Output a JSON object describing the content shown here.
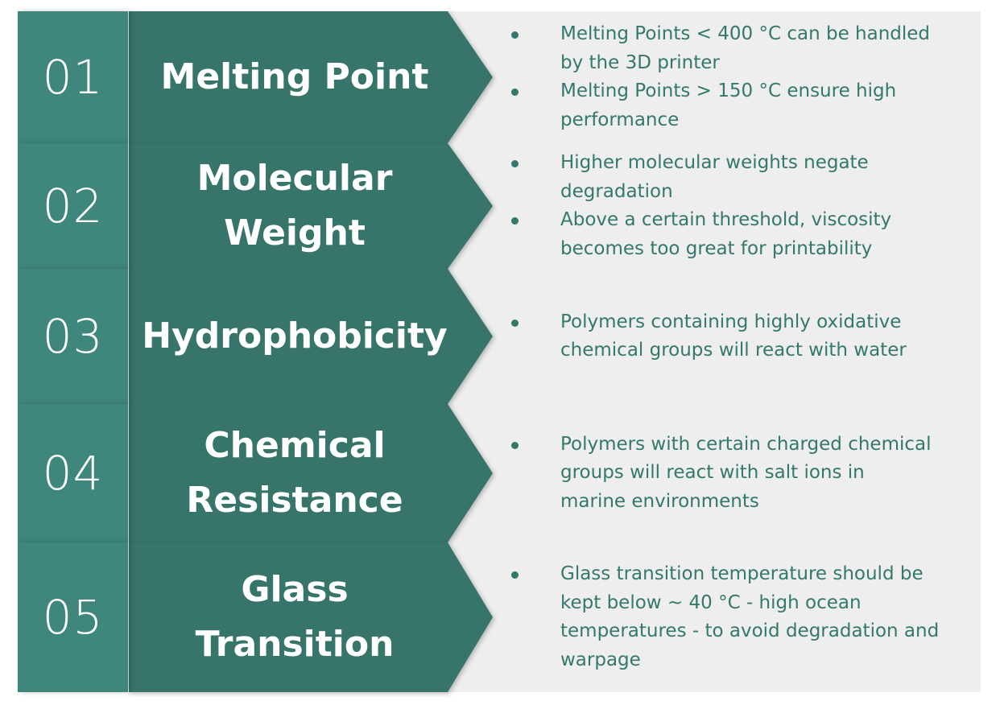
{
  "colors": {
    "number_box": "#3f877c",
    "arrow": "#37756b",
    "panel": "#eeeeee",
    "text": "#34786c"
  },
  "rows": [
    {
      "number": "01",
      "title_lines": [
        "Melting Point"
      ],
      "bullets": [
        [
          "Melting Points < 400 °C can be handled",
          "by the 3D printer"
        ],
        [
          "Melting Points > 150 °C ensure high",
          "performance"
        ]
      ]
    },
    {
      "number": "02",
      "title_lines": [
        "Molecular",
        "Weight"
      ],
      "bullets": [
        [
          "Higher molecular weights negate",
          "degradation"
        ],
        [
          "Above a certain threshold, viscosity",
          "becomes too great for printability"
        ]
      ]
    },
    {
      "number": "03",
      "title_lines": [
        "Hydrophobicity"
      ],
      "bullets": [
        [
          "Polymers containing highly oxidative",
          "chemical groups will react with water"
        ]
      ]
    },
    {
      "number": "04",
      "title_lines": [
        "Chemical",
        "Resistance"
      ],
      "bullets": [
        [
          "Polymers with certain charged chemical",
          "groups will react with salt ions in",
          "marine environments"
        ]
      ]
    },
    {
      "number": "05",
      "title_lines": [
        "Glass",
        "Transition"
      ],
      "bullets": [
        [
          "Glass transition temperature should be",
          "kept below ~ 40 °C - high ocean",
          "temperatures - to avoid degradation and",
          "warpage"
        ]
      ]
    }
  ]
}
